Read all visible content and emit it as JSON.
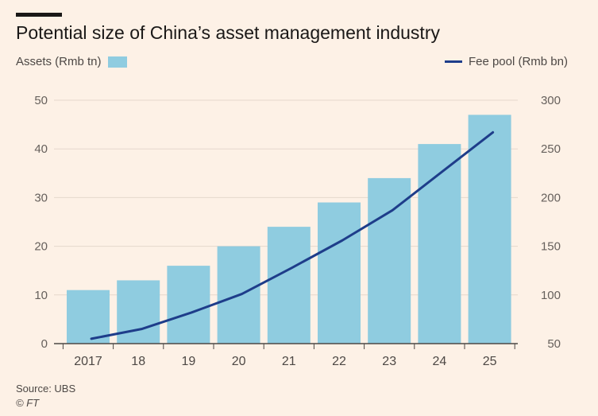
{
  "chart_data": {
    "type": "bar",
    "title": "Potential size of China’s asset management industry",
    "categories": [
      "2017",
      "18",
      "19",
      "20",
      "21",
      "22",
      "23",
      "24",
      "25"
    ],
    "series": [
      {
        "name": "Assets (Rmb tn)",
        "type": "bar",
        "axis": "left",
        "color": "#8fcce0",
        "values": [
          11,
          13,
          16,
          20,
          24,
          29,
          34,
          41,
          47
        ]
      },
      {
        "name": "Fee pool (Rmb bn)",
        "type": "line",
        "axis": "right",
        "color": "#1e3d8a",
        "values": [
          55,
          65,
          82,
          101,
          128,
          156,
          187,
          227,
          267
        ]
      }
    ],
    "y_left": {
      "ylim": [
        0,
        50
      ],
      "ticks": [
        0,
        10,
        20,
        30,
        40,
        50
      ]
    },
    "y_right": {
      "ylim": [
        50,
        300
      ],
      "ticks": [
        50,
        100,
        150,
        200,
        250,
        300
      ]
    },
    "grid": true
  },
  "source": "Source: UBS",
  "credit": "© FT"
}
